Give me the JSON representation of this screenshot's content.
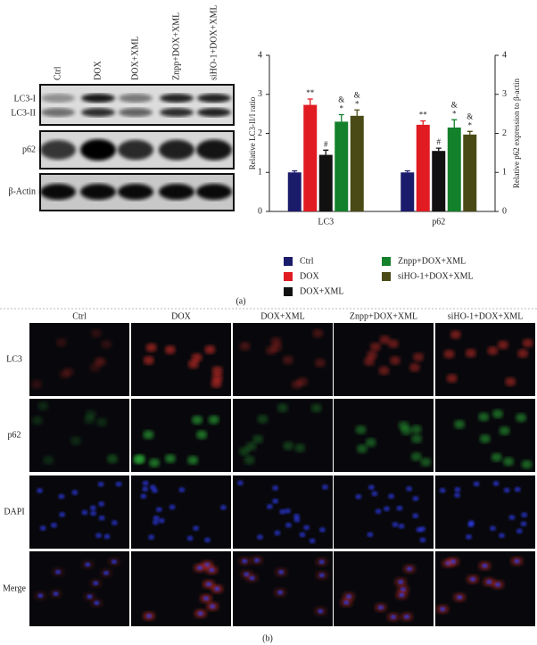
{
  "blot": {
    "lanes": [
      "Ctrl",
      "DOX",
      "DOX+XML",
      "Znpp+DOX+XML",
      "siHO-1+DOX+XML"
    ],
    "rows": [
      "LC3-I",
      "LC3-II",
      "p62",
      "β-Actin"
    ]
  },
  "chart_data": {
    "type": "bar",
    "y_label": "Relative LC3-II/I ratio",
    "y2_label": "Relative p62 expression to β-actin",
    "categories": [
      "LC3",
      "p62"
    ],
    "ylim": [
      0,
      4
    ],
    "yticks": [
      0,
      1,
      2,
      3,
      4
    ],
    "y2lim": [
      0,
      4
    ],
    "y2ticks": [
      0,
      1,
      2,
      3,
      4
    ],
    "series": [
      {
        "name": "Ctrl",
        "color": "#1b1b6b",
        "values": [
          1.0,
          1.0
        ],
        "errors": [
          0.04,
          0.04
        ],
        "annotations": [
          [],
          []
        ]
      },
      {
        "name": "DOX",
        "color": "#e01b22",
        "values": [
          2.73,
          2.22
        ],
        "errors": [
          0.15,
          0.1
        ],
        "annotations": [
          [
            "**"
          ],
          [
            "**"
          ]
        ]
      },
      {
        "name": "DOX+XML",
        "color": "#111111",
        "values": [
          1.45,
          1.55
        ],
        "errors": [
          0.12,
          0.07
        ],
        "annotations": [
          [
            "#"
          ],
          [
            "#"
          ]
        ]
      },
      {
        "name": "Znpp+DOX+XML",
        "color": "#13802b",
        "values": [
          2.3,
          2.15
        ],
        "errors": [
          0.18,
          0.2
        ],
        "annotations": [
          [
            "&",
            "*"
          ],
          [
            "&",
            "*"
          ]
        ]
      },
      {
        "name": "siHO-1+DOX+XML",
        "color": "#4a4a16",
        "values": [
          2.45,
          1.97
        ],
        "errors": [
          0.15,
          0.08
        ],
        "annotations": [
          [
            "&",
            "*"
          ],
          [
            "&",
            "*"
          ]
        ]
      }
    ]
  },
  "fluorescence": {
    "columns": [
      "Ctrl",
      "DOX",
      "DOX+XML",
      "Znpp+DOX+XML",
      "siHO-1+DOX+XML"
    ],
    "rows": [
      "LC3",
      "p62",
      "DAPI",
      "Merge"
    ]
  },
  "panel_labels": [
    "(a)",
    "(b)"
  ]
}
